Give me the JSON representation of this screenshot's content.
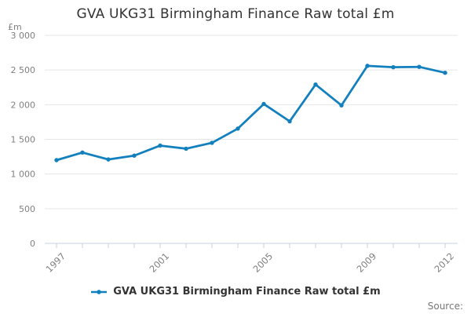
{
  "title": "GVA UKG31 Birmingham Finance Raw total £m",
  "y_unit": "£m",
  "legend": {
    "label": "GVA UKG31 Birmingham Finance Raw total £m"
  },
  "source_label": "Source:",
  "colors": {
    "line": "#1380BE",
    "grid": "#E6E6E6",
    "axis": "#C6D3E2",
    "tick_label": "#808080",
    "title_text": "#333333",
    "legend_text": "#333333",
    "source_text": "#757575"
  },
  "chart_data": {
    "type": "line",
    "title": "GVA UKG31 Birmingham Finance Raw total £m",
    "xlabel": "",
    "ylabel": "£m",
    "x": [
      1997,
      1998,
      1999,
      2000,
      2001,
      2002,
      2003,
      2004,
      2005,
      2006,
      2007,
      2008,
      2009,
      2010,
      2011,
      2012
    ],
    "series": [
      {
        "name": "GVA UKG31 Birmingham Finance Raw total £m",
        "values": [
          1200,
          1310,
          1210,
          1265,
          1410,
          1365,
          1450,
          1655,
          2010,
          1760,
          2290,
          1990,
          2560,
          2540,
          2545,
          2460
        ]
      }
    ],
    "ylim": [
      0,
      3000
    ],
    "ytick_step": 500,
    "ytick_labels": [
      "0",
      "500",
      "1 000",
      "1 500",
      "2 000",
      "2 500",
      "3 000"
    ],
    "x_labeled_ticks": [
      1997,
      2001,
      2005,
      2009,
      2012
    ],
    "grid": "horizontal",
    "legend_position": "bottom",
    "marker": "circle"
  }
}
